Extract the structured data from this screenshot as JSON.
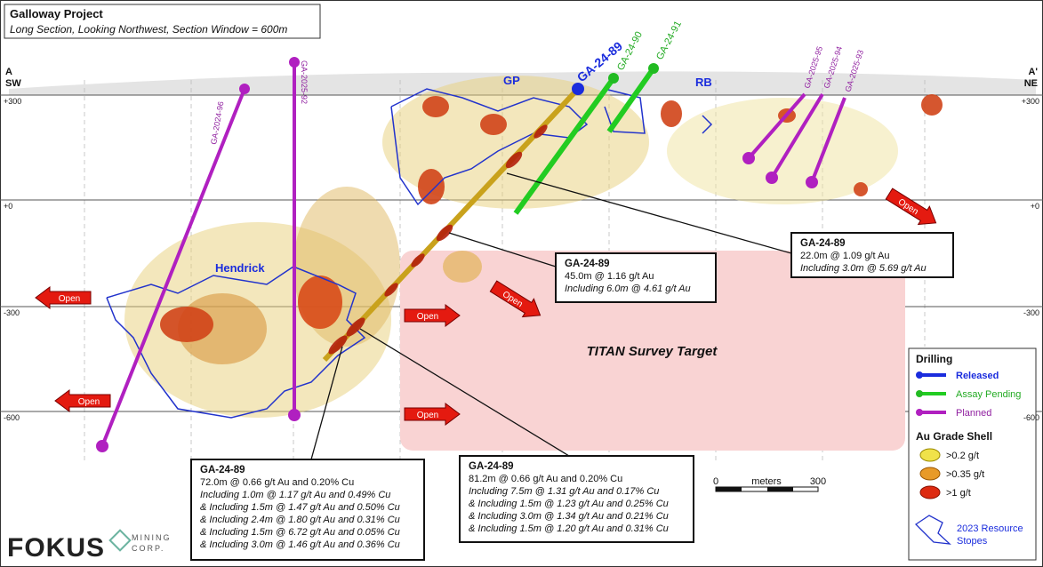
{
  "header": {
    "title": "Galloway Project",
    "subtitle": "Long Section, Looking Northwest, Section Window = 600m"
  },
  "section": {
    "start": "A",
    "start_dir": "SW",
    "end": "A'",
    "end_dir": "NE"
  },
  "elevations_left": [
    "+300",
    "+0",
    "-300",
    "-600"
  ],
  "elevations_right": [
    "+300",
    "+0",
    "-300",
    "-600"
  ],
  "zones": [
    "GP",
    "RB",
    "Hendrick"
  ],
  "drill_holes": [
    "GA-24-89",
    "GA-24-90",
    "GA-24-91",
    "GA-2025-95",
    "GA-2025-94",
    "GA-2025-93",
    "GA-2024-96",
    "GA-2025-92"
  ],
  "open_arrows": [
    "Open",
    "Open",
    "Open",
    "Open",
    "Open",
    "Open"
  ],
  "target": "TITAN Survey Target",
  "callouts": [
    {
      "title": "GA-24-89",
      "lines": [
        "22.0m @ 1.09 g/t Au",
        "Including 3.0m @ 5.69 g/t Au"
      ]
    },
    {
      "title": "GA-24-89",
      "lines": [
        "45.0m @ 1.16 g/t Au",
        "Including 6.0m @ 4.61 g/t Au"
      ]
    },
    {
      "title": "GA-24-89",
      "lines": [
        "72.0m @ 0.66 g/t Au and 0.20% Cu",
        "Including 1.0m @ 1.17 g/t Au and 0.49% Cu",
        "& Including 1.5m @ 1.47 g/t Au and 0.50% Cu",
        "& Including 2.4m @ 1.80 g/t Au and 0.31% Cu",
        "& Including 1.5m @ 6.72 g/t Au and 0.05% Cu",
        "& Including 3.0m @ 1.46 g/t Au and 0.36% Cu"
      ]
    },
    {
      "title": "GA-24-89",
      "lines": [
        "81.2m @ 0.66 g/t Au and 0.20% Cu",
        "Including 7.5m @ 1.31 g/t Au and 0.17% Cu",
        "& Including 1.5m @ 1.23 g/t Au and 0.25% Cu",
        "& Including 3.0m @ 1.34 g/t Au and 0.21% Cu",
        "& Including 1.5m @ 1.20 g/t Au and 0.31% Cu"
      ]
    }
  ],
  "scale": {
    "start": "0",
    "unit": "meters",
    "end": "300"
  },
  "legend": {
    "drilling_title": "Drilling",
    "drilling": [
      "Released",
      "Assay Pending",
      "Planned"
    ],
    "grade_title": "Au Grade Shell",
    "grades": [
      ">0.2 g/t",
      ">0.35 g/t",
      ">1 g/t"
    ],
    "stopes": [
      "2023 Resource",
      "Stopes"
    ]
  },
  "logo": {
    "name": "FOKUS",
    "tag": [
      "MINING",
      "CORP."
    ]
  }
}
